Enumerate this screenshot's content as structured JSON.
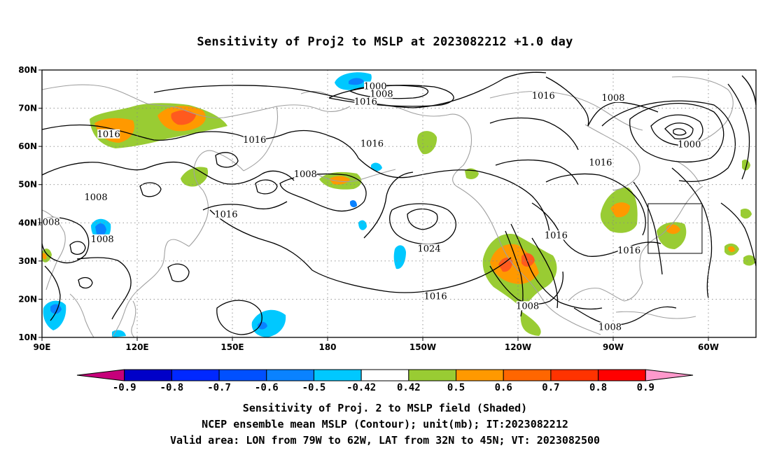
{
  "title": "Sensitivity of Proj2 to MSLP at 2023082212 +1.0 day",
  "lon_ticks": [
    {
      "lon": 90,
      "label": "90E"
    },
    {
      "lon": 120,
      "label": "120E"
    },
    {
      "lon": 150,
      "label": "150E"
    },
    {
      "lon": 180,
      "label": "180"
    },
    {
      "lon": 210,
      "label": "150W"
    },
    {
      "lon": 240,
      "label": "120W"
    },
    {
      "lon": 270,
      "label": "90W"
    },
    {
      "lon": 300,
      "label": "60W"
    }
  ],
  "lat_ticks": [
    {
      "lat": 10,
      "label": "10N"
    },
    {
      "lat": 20,
      "label": "20N"
    },
    {
      "lat": 30,
      "label": "30N"
    },
    {
      "lat": 40,
      "label": "40N"
    },
    {
      "lat": 50,
      "label": "50N"
    },
    {
      "lat": 60,
      "label": "60N"
    },
    {
      "lat": 70,
      "label": "70N"
    },
    {
      "lat": 80,
      "label": "80N"
    }
  ],
  "domain": {
    "lon_min": 90,
    "lon_max": 315,
    "lat_min": 10,
    "lat_max": 80
  },
  "valid_box": {
    "lon_min": 281,
    "lon_max": 298,
    "lat_min": 32,
    "lat_max": 45
  },
  "contour_labels": [
    {
      "text": "1000",
      "lon": 195,
      "lat": 75.5
    },
    {
      "text": "1008",
      "lon": 197,
      "lat": 73.5
    },
    {
      "text": "1016",
      "lon": 192,
      "lat": 71.5
    },
    {
      "text": "1016",
      "lon": 248,
      "lat": 73
    },
    {
      "text": "1008",
      "lon": 270,
      "lat": 72.5
    },
    {
      "text": "1000",
      "lon": 294,
      "lat": 60.3
    },
    {
      "text": "1016",
      "lon": 111,
      "lat": 63
    },
    {
      "text": "1016",
      "lon": 157,
      "lat": 61.5
    },
    {
      "text": "1016",
      "lon": 194,
      "lat": 60.5
    },
    {
      "text": "1016",
      "lon": 266,
      "lat": 55.5
    },
    {
      "text": "1008",
      "lon": 173,
      "lat": 52.5
    },
    {
      "text": "1008",
      "lon": 107,
      "lat": 46.5
    },
    {
      "text": "1016",
      "lon": 148,
      "lat": 42
    },
    {
      "text": "1008",
      "lon": 92,
      "lat": 40
    },
    {
      "text": "1008",
      "lon": 109,
      "lat": 35.5
    },
    {
      "text": "1024",
      "lon": 212,
      "lat": 33
    },
    {
      "text": "1016",
      "lon": 252,
      "lat": 36.5
    },
    {
      "text": "1016",
      "lon": 275,
      "lat": 32.5
    },
    {
      "text": "1016",
      "lon": 214,
      "lat": 20.5
    },
    {
      "text": "1008",
      "lon": 243,
      "lat": 18
    },
    {
      "text": "1008",
      "lon": 269,
      "lat": 12.5
    }
  ],
  "colorbar": {
    "labels": [
      "-0.9",
      "-0.8",
      "-0.7",
      "-0.6",
      "-0.5",
      "-0.42",
      "0.42",
      "0.5",
      "0.6",
      "0.7",
      "0.8",
      "0.9"
    ],
    "colors": [
      "#c6007a",
      "#0000c8",
      "#0028ff",
      "#0050ff",
      "#0a82ff",
      "#00c8ff",
      "#ffffff",
      "#99cc33",
      "#ff9900",
      "#ff6600",
      "#ff3300",
      "#ff0000",
      "#ff99cc"
    ]
  },
  "shading_colors": {
    "green": "#99cc33",
    "orange": "#ff9900",
    "red-orange": "#ff5a1e",
    "cyan": "#00c8ff",
    "blue": "#0a82ff"
  },
  "captions": [
    "Sensitivity of Proj. 2 to MSLP field (Shaded)",
    "NCEP ensemble mean MSLP (Contour); unit(mb); IT:2023082212",
    "Valid area: LON from 79W to 62W, LAT from 32N to 45N; VT: 2023082500"
  ]
}
